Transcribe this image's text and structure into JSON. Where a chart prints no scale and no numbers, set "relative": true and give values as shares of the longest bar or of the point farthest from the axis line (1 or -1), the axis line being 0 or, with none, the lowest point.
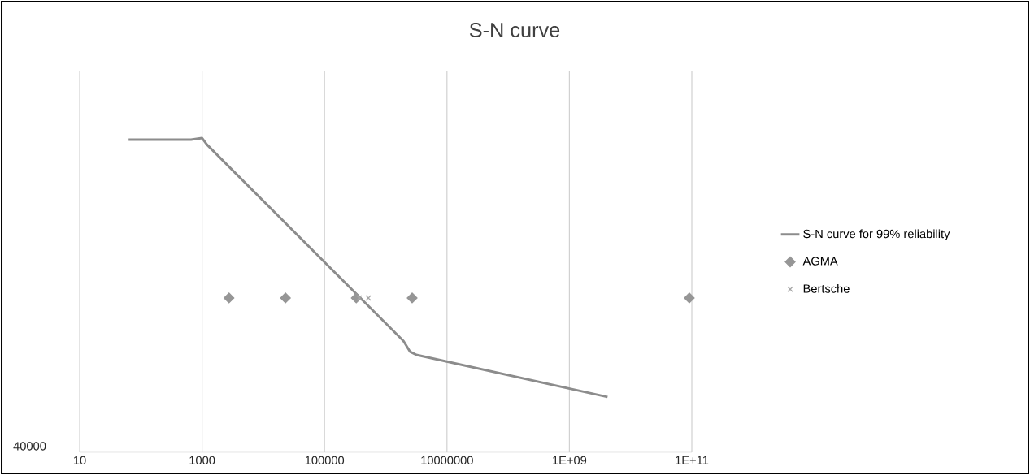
{
  "chart_data": {
    "type": "line",
    "title": "S-N curve",
    "relative": true,
    "log": "x",
    "grid": "x",
    "legend": "right",
    "xlim": [
      10,
      100000000000
    ],
    "xticks": [
      10,
      1000,
      100000,
      10000000,
      {
        "value": 1000000000,
        "label": "1E+09"
      },
      {
        "value": 100000000000,
        "label": "1E+11"
      }
    ],
    "annotations": [
      "40000"
    ],
    "series": [
      {
        "name": "S-N curve for 99% reliability",
        "marker": "none",
        "color": "#8c8c8c",
        "x": [
          63,
          660,
          1000,
          1200,
          1950000,
          2500000,
          3160000,
          4200000000
        ],
        "values": [
          0.995,
          0.995,
          1.0,
          0.979,
          0.354,
          0.32,
          0.31,
          0.176
        ]
      },
      {
        "name": "AGMA",
        "type": "scatter",
        "marker": "diamond",
        "color": "#969696",
        "x": [
          2750,
          23000,
          330000,
          2700000,
          91000000000
        ],
        "values": [
          0.491,
          0.491,
          0.491,
          0.491,
          0.491
        ]
      },
      {
        "name": "Bertsche",
        "type": "scatter",
        "marker": "cross",
        "color": "#a6a6a6",
        "x": [
          370000,
          520000
        ],
        "values": [
          0.491,
          0.491
        ]
      }
    ]
  }
}
